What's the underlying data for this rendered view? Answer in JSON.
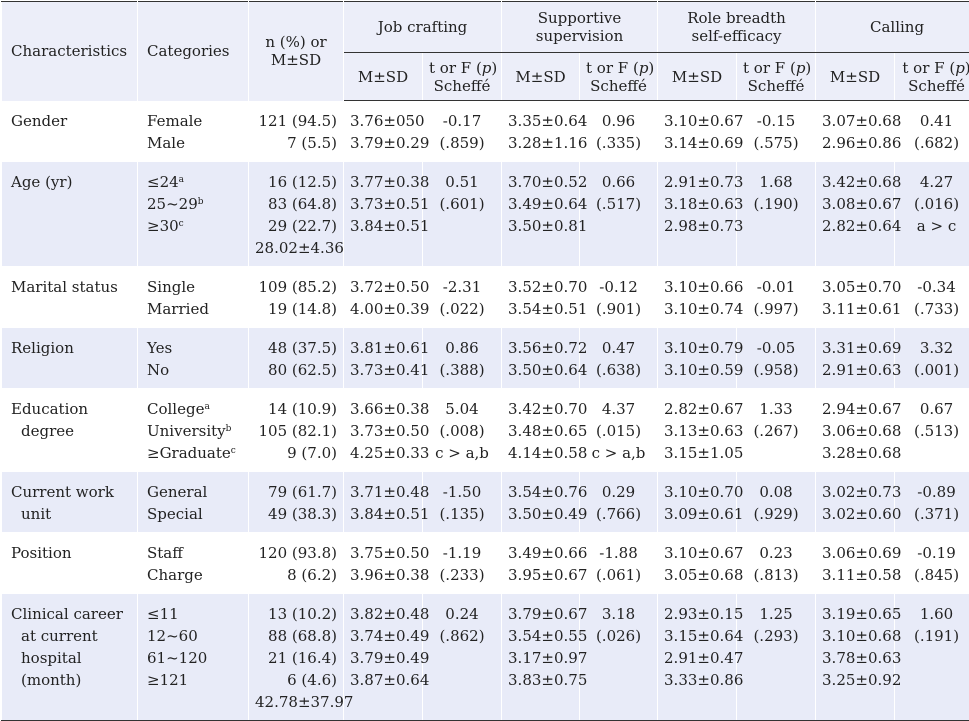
{
  "header": {
    "characteristics": "Characteristics",
    "categories": "Categories",
    "n_line1": "n (%) or",
    "n_line2": "M±SD",
    "groups": [
      {
        "label1": "Job crafting",
        "label2": ""
      },
      {
        "label1": "Supportive",
        "label2": "supervision"
      },
      {
        "label1": "Role breadth",
        "label2": "self-efficacy"
      },
      {
        "label1": "Calling",
        "label2": ""
      }
    ],
    "msd": "M±SD",
    "test_line1": "t or F (p)",
    "test_line2": "Scheffé"
  },
  "rows": [
    {
      "char": [
        "Gender"
      ],
      "cats": [
        {
          "t": "Female",
          "s": ""
        },
        {
          "t": "Male",
          "s": ""
        }
      ],
      "n": [
        "121 (94.5)",
        "7 (5.5)"
      ],
      "jc": [
        "3.76±050",
        "3.79±0.29"
      ],
      "jc_t": [
        "-0.17",
        "(.859)"
      ],
      "ss": [
        "3.35±0.64",
        "3.28±1.16"
      ],
      "ss_t": [
        "0.96",
        "(.335)"
      ],
      "rb": [
        "3.10±0.67",
        "3.14±0.69"
      ],
      "rb_t": [
        "-0.15",
        "(.575)"
      ],
      "ca": [
        "3.07±0.68",
        "2.96±0.86"
      ],
      "ca_t": [
        "0.41",
        "(.682)"
      ]
    },
    {
      "char": [
        "Age (yr)"
      ],
      "cats": [
        {
          "t": "≤24",
          "s": "a"
        },
        {
          "t": "25~29",
          "s": "b"
        },
        {
          "t": "≥30",
          "s": "c"
        }
      ],
      "n": [
        "16 (12.5)",
        "83 (64.8)",
        "29 (22.7)",
        "28.02±4.36"
      ],
      "jc": [
        "3.77±0.38",
        "3.73±0.51",
        "3.84±0.51"
      ],
      "jc_t": [
        "0.51",
        "(.601)"
      ],
      "ss": [
        "3.70±0.52",
        "3.49±0.64",
        "3.50±0.81"
      ],
      "ss_t": [
        "0.66",
        "(.517)"
      ],
      "rb": [
        "2.91±0.73",
        "3.18±0.63",
        "2.98±0.73"
      ],
      "rb_t": [
        "1.68",
        "(.190)"
      ],
      "ca": [
        "3.42±0.68",
        "3.08±0.67",
        "2.82±0.64"
      ],
      "ca_t": [
        "4.27",
        "(.016)",
        "a > c"
      ]
    },
    {
      "char": [
        "Marital status"
      ],
      "cats": [
        {
          "t": "Single",
          "s": ""
        },
        {
          "t": "Married",
          "s": ""
        }
      ],
      "n": [
        "109 (85.2)",
        "19 (14.8)"
      ],
      "jc": [
        "3.72±0.50",
        "4.00±0.39"
      ],
      "jc_t": [
        "-2.31",
        "(.022)"
      ],
      "ss": [
        "3.52±0.70",
        "3.54±0.51"
      ],
      "ss_t": [
        "-0.12",
        "(.901)"
      ],
      "rb": [
        "3.10±0.66",
        "3.10±0.74"
      ],
      "rb_t": [
        "-0.01",
        "(.997)"
      ],
      "ca": [
        "3.05±0.70",
        "3.11±0.61"
      ],
      "ca_t": [
        "-0.34",
        "(.733)"
      ]
    },
    {
      "char": [
        "Religion"
      ],
      "cats": [
        {
          "t": "Yes",
          "s": ""
        },
        {
          "t": "No",
          "s": ""
        }
      ],
      "n": [
        "48 (37.5)",
        "80 (62.5)"
      ],
      "jc": [
        "3.81±0.61",
        "3.73±0.41"
      ],
      "jc_t": [
        "0.86",
        "(.388)"
      ],
      "ss": [
        "3.56±0.72",
        "3.50±0.64"
      ],
      "ss_t": [
        "0.47",
        "(.638)"
      ],
      "rb": [
        "3.10±0.79",
        "3.10±0.59"
      ],
      "rb_t": [
        "-0.05",
        "(.958)"
      ],
      "ca": [
        "3.31±0.69",
        "2.91±0.63"
      ],
      "ca_t": [
        "3.32",
        "(.001)"
      ]
    },
    {
      "char": [
        "Education",
        "degree"
      ],
      "cats": [
        {
          "t": "College",
          "s": "a"
        },
        {
          "t": "University",
          "s": "b"
        },
        {
          "t": "≥Graduate",
          "s": "c"
        }
      ],
      "n": [
        "14 (10.9)",
        "105 (82.1)",
        "9 (7.0)"
      ],
      "jc": [
        "3.66±0.38",
        "3.73±0.50",
        "4.25±0.33"
      ],
      "jc_t": [
        "5.04",
        "(.008)",
        "c > a,b"
      ],
      "ss": [
        "3.42±0.70",
        "3.48±0.65",
        "4.14±0.58"
      ],
      "ss_t": [
        "4.37",
        "(.015)",
        "c > a,b"
      ],
      "rb": [
        "2.82±0.67",
        "3.13±0.63",
        "3.15±1.05"
      ],
      "rb_t": [
        "1.33",
        "(.267)"
      ],
      "ca": [
        "2.94±0.67",
        "3.06±0.68",
        "3.28±0.68"
      ],
      "ca_t": [
        "0.67",
        "(.513)"
      ]
    },
    {
      "char": [
        "Current work",
        "unit"
      ],
      "cats": [
        {
          "t": "General",
          "s": ""
        },
        {
          "t": "Special",
          "s": ""
        }
      ],
      "n": [
        "79 (61.7)",
        "49 (38.3)"
      ],
      "jc": [
        "3.71±0.48",
        "3.84±0.51"
      ],
      "jc_t": [
        "-1.50",
        "(.135)"
      ],
      "ss": [
        "3.54±0.76",
        "3.50±0.49"
      ],
      "ss_t": [
        "0.29",
        "(.766)"
      ],
      "rb": [
        "3.10±0.70",
        "3.09±0.61"
      ],
      "rb_t": [
        "0.08",
        "(.929)"
      ],
      "ca": [
        "3.02±0.73",
        "3.02±0.60"
      ],
      "ca_t": [
        "-0.89",
        "(.371)"
      ]
    },
    {
      "char": [
        "Position"
      ],
      "cats": [
        {
          "t": "Staff",
          "s": ""
        },
        {
          "t": "Charge",
          "s": ""
        }
      ],
      "n": [
        "120 (93.8)",
        "8 (6.2)"
      ],
      "jc": [
        "3.75±0.50",
        "3.96±0.38"
      ],
      "jc_t": [
        "-1.19",
        "(.233)"
      ],
      "ss": [
        "3.49±0.66",
        "3.95±0.67"
      ],
      "ss_t": [
        "-1.88",
        "(.061)"
      ],
      "rb": [
        "3.10±0.67",
        "3.05±0.68"
      ],
      "rb_t": [
        "0.23",
        "(.813)"
      ],
      "ca": [
        "3.06±0.69",
        "3.11±0.58"
      ],
      "ca_t": [
        "-0.19",
        "(.845)"
      ]
    },
    {
      "char": [
        "Clinical career",
        "at current",
        "hospital",
        "(month)"
      ],
      "cats": [
        {
          "t": "≤11",
          "s": ""
        },
        {
          "t": "12~60",
          "s": ""
        },
        {
          "t": "61~120",
          "s": ""
        },
        {
          "t": "≥121",
          "s": ""
        }
      ],
      "n": [
        "13 (10.2)",
        "88 (68.8)",
        "21 (16.4)",
        "6 (4.6)",
        "42.78±37.97"
      ],
      "jc": [
        "3.82±0.48",
        "3.74±0.49",
        "3.79±0.49",
        "3.87±0.64"
      ],
      "jc_t": [
        "0.24",
        "(.862)"
      ],
      "ss": [
        "3.79±0.67",
        "3.54±0.55",
        "3.17±0.97",
        "3.83±0.75"
      ],
      "ss_t": [
        "3.18",
        "(.026)"
      ],
      "rb": [
        "2.93±0.15",
        "3.15±0.64",
        "2.91±0.47",
        "3.33±0.86"
      ],
      "rb_t": [
        "1.25",
        "(.293)"
      ],
      "ca": [
        "3.19±0.65",
        "3.10±0.68",
        "3.78±0.63",
        "3.25±0.92"
      ],
      "ca_t": [
        "1.60",
        "(.191)"
      ]
    }
  ]
}
